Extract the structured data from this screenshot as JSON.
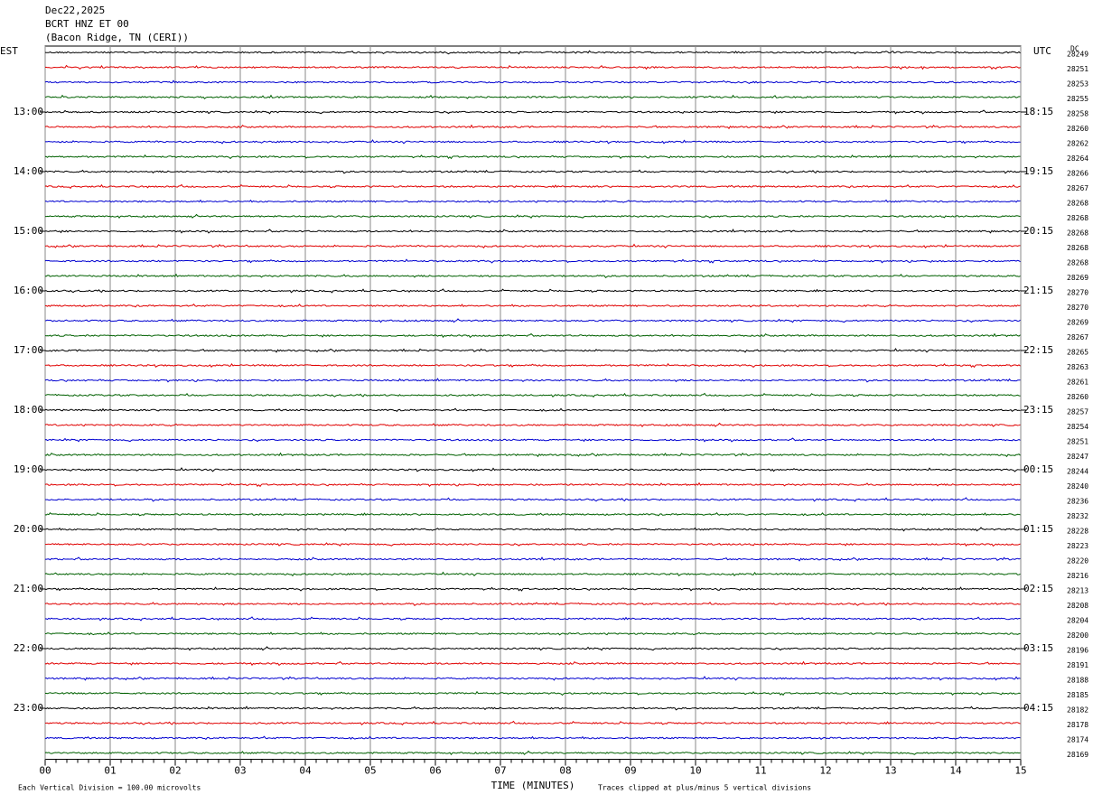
{
  "header": {
    "lines": [
      "Dec22,2025",
      "BCRT HNZ ET 00",
      "(Bacon Ridge, TN (CERI))"
    ]
  },
  "left_axis": {
    "label": "EST",
    "hours": [
      "13:00",
      "14:00",
      "15:00",
      "16:00",
      "17:00",
      "18:00",
      "19:00",
      "20:00",
      "21:00",
      "22:00",
      "23:00"
    ]
  },
  "right_axis": {
    "label": "UTC",
    "hours": [
      "18:15",
      "19:15",
      "20:15",
      "21:15",
      "22:15",
      "23:15",
      "00:15",
      "01:15",
      "02:15",
      "03:15",
      "04:15"
    ]
  },
  "dc": {
    "label": "DC",
    "values": [
      28249,
      28251,
      28253,
      28255,
      28258,
      28260,
      28262,
      28264,
      28266,
      28267,
      28268,
      28268,
      28268,
      28268,
      28268,
      28269,
      28270,
      28270,
      28269,
      28267,
      28265,
      28263,
      28261,
      28260,
      28257,
      28254,
      28251,
      28247,
      28244,
      28240,
      28236,
      28232,
      28228,
      28223,
      28220,
      28216,
      28213,
      28208,
      28204,
      28200,
      28196,
      28191,
      28188,
      28185,
      28182,
      28178,
      28174,
      28169
    ]
  },
  "x_axis": {
    "title": "TIME (MINUTES)",
    "ticks": [
      "00",
      "01",
      "02",
      "03",
      "04",
      "05",
      "06",
      "07",
      "08",
      "09",
      "10",
      "11",
      "12",
      "13",
      "14",
      "15"
    ]
  },
  "footer": {
    "left": "Each Vertical Division =  100.00 microvolts",
    "right": "Traces clipped at plus/minus 5 vertical divisions"
  },
  "trace_colors": [
    "#000000",
    "#e00000",
    "#0000d0",
    "#006000"
  ]
}
